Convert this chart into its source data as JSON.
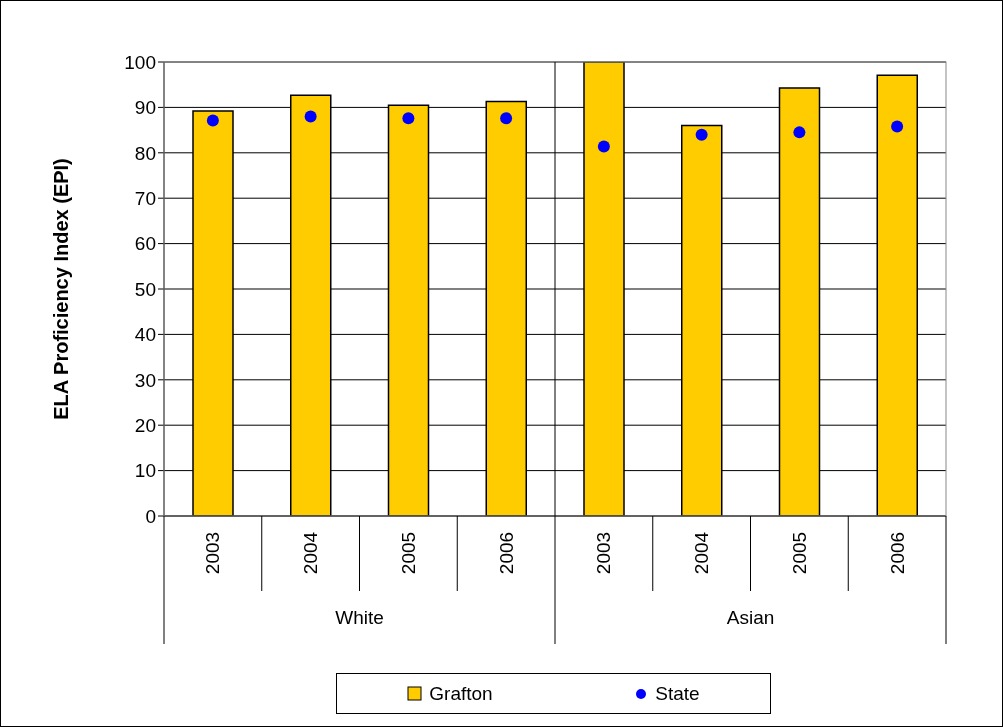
{
  "chart_data": {
    "type": "bar",
    "ylabel": "ELA Proficiency Index (EPI)",
    "categories": [
      "2003",
      "2004",
      "2005",
      "2006",
      "2003",
      "2004",
      "2005",
      "2006"
    ],
    "annotations": [
      "White",
      "Asian"
    ],
    "series": [
      {
        "name": "Grafton",
        "color": "#ffcc00",
        "values": [
          89.2,
          92.7,
          90.5,
          91.3,
          100,
          86,
          94.3,
          97.1
        ]
      },
      {
        "name": "State",
        "type": "scatter",
        "color": "#0000ff",
        "values": [
          87.1,
          88,
          87.6,
          87.6,
          81.4,
          84,
          84.5,
          85.8
        ]
      }
    ],
    "ylim": [
      0,
      100
    ],
    "yticks": [
      0,
      10,
      20,
      30,
      40,
      50,
      60,
      70,
      80,
      90,
      100
    ],
    "grid": "y",
    "legend": "bottom",
    "marker": "circle"
  }
}
